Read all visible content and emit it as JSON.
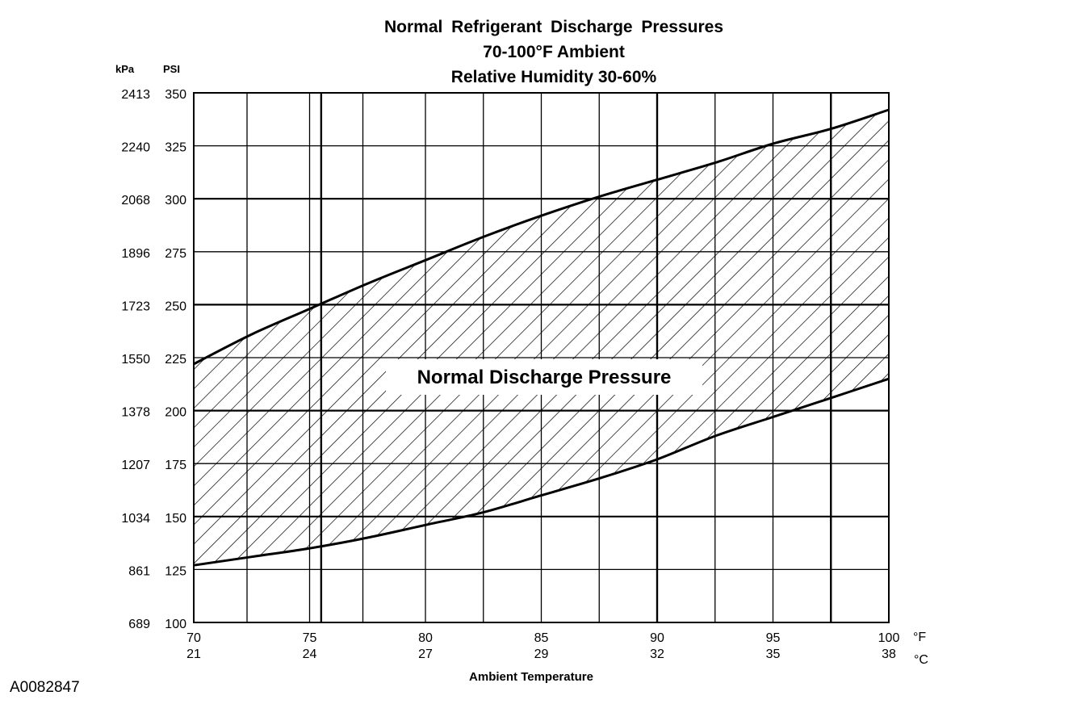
{
  "chart_data": {
    "type": "area",
    "title": "Normal Refrigerant Discharge Pressures",
    "subtitle_lines": [
      "70-100°F Ambient",
      "Relative Humidity 30-60%"
    ],
    "xlabel": "Ambient Temperature",
    "x_unit_primary": "°F",
    "x_unit_secondary": "°C",
    "x_ticks_f": [
      70,
      75,
      80,
      85,
      90,
      95,
      100
    ],
    "x_ticks_c": [
      21,
      24,
      27,
      29,
      32,
      35,
      38
    ],
    "xlim": [
      70,
      100
    ],
    "x_grid_major": [
      75.5,
      90,
      97.5
    ],
    "x_grid_minor": [
      72.3,
      75,
      77.3,
      80,
      82.5,
      85,
      87.5,
      92.5,
      95
    ],
    "y_unit_primary": "PSI",
    "y_unit_secondary": "kPa",
    "y_ticks_psi": [
      100,
      125,
      150,
      175,
      200,
      225,
      250,
      275,
      300,
      325,
      350
    ],
    "y_ticks_kpa": [
      689,
      861,
      1034,
      1207,
      1378,
      1550,
      1723,
      1896,
      2068,
      2240,
      2413
    ],
    "ylim": [
      100,
      350
    ],
    "y_grid_major": [
      150,
      200,
      250,
      300
    ],
    "grid": true,
    "band_label": "Normal Discharge Pressure",
    "series": [
      {
        "role": "upper_limit",
        "x": [
          70,
          72.5,
          75,
          77.5,
          80,
          82.5,
          85,
          87.5,
          90,
          92.5,
          95,
          97.5,
          100
        ],
        "y": [
          222,
          236,
          248,
          260,
          271,
          282,
          292,
          301,
          309,
          317,
          326,
          333,
          342
        ]
      },
      {
        "role": "lower_limit",
        "x": [
          70,
          72.5,
          75,
          77.5,
          80,
          82.5,
          85,
          87.5,
          90,
          92.5,
          95,
          97.5,
          100
        ],
        "y": [
          127,
          131,
          135,
          140,
          146,
          152,
          160,
          168,
          177,
          188,
          197,
          206,
          215
        ]
      }
    ]
  },
  "figure_id": "A0082847",
  "colors": {
    "ink": "#000000",
    "background": "#ffffff"
  }
}
